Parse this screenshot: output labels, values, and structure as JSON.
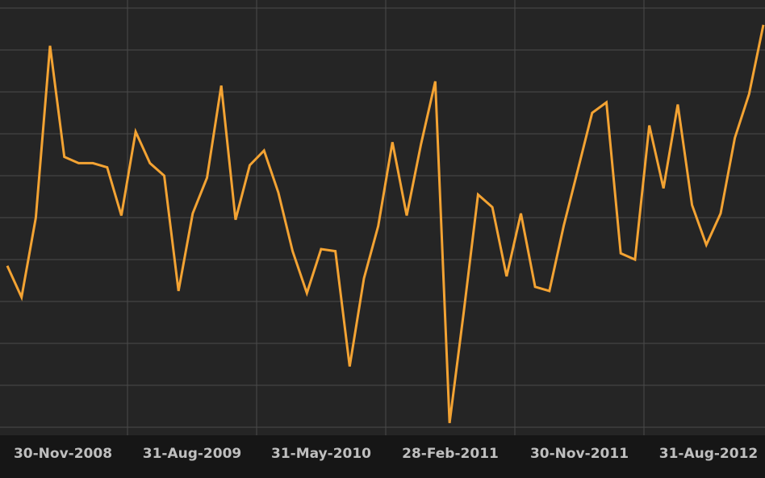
{
  "chart_data": {
    "type": "line",
    "title": "",
    "xlabel": "",
    "ylabel": "",
    "grid": true,
    "colors": {
      "background": "#1a1a1a",
      "plot_background": "#252525",
      "axis_band": "#161616",
      "grid": "#4a4a4a",
      "line": "#f3a333",
      "tick_text": "#bfbfbf"
    },
    "x_ticks": [
      "30-Nov-2008",
      "31-Aug-2009",
      "31-May-2010",
      "28-Feb-2011",
      "30-Nov-2011",
      "31-Aug-2012"
    ],
    "y_axis_labels_visible": false,
    "ylim": [
      0,
      100
    ],
    "series": [
      {
        "values": [
          38.5,
          31,
          50,
          91,
          64.5,
          63,
          63,
          62,
          50.5,
          70.5,
          63,
          60,
          32.5,
          51,
          59.5,
          81.5,
          49.5,
          62.5,
          66,
          56,
          42,
          32,
          42.5,
          42,
          14.5,
          35.5,
          48,
          68,
          50.5,
          67.5,
          82.5,
          1,
          27.5,
          55.5,
          52.5,
          36,
          51,
          33.5,
          32.5,
          48,
          61.5,
          75,
          77.5,
          41.5,
          40,
          72,
          57,
          77,
          53,
          43.5,
          51,
          69,
          79.5,
          96
        ]
      }
    ]
  }
}
